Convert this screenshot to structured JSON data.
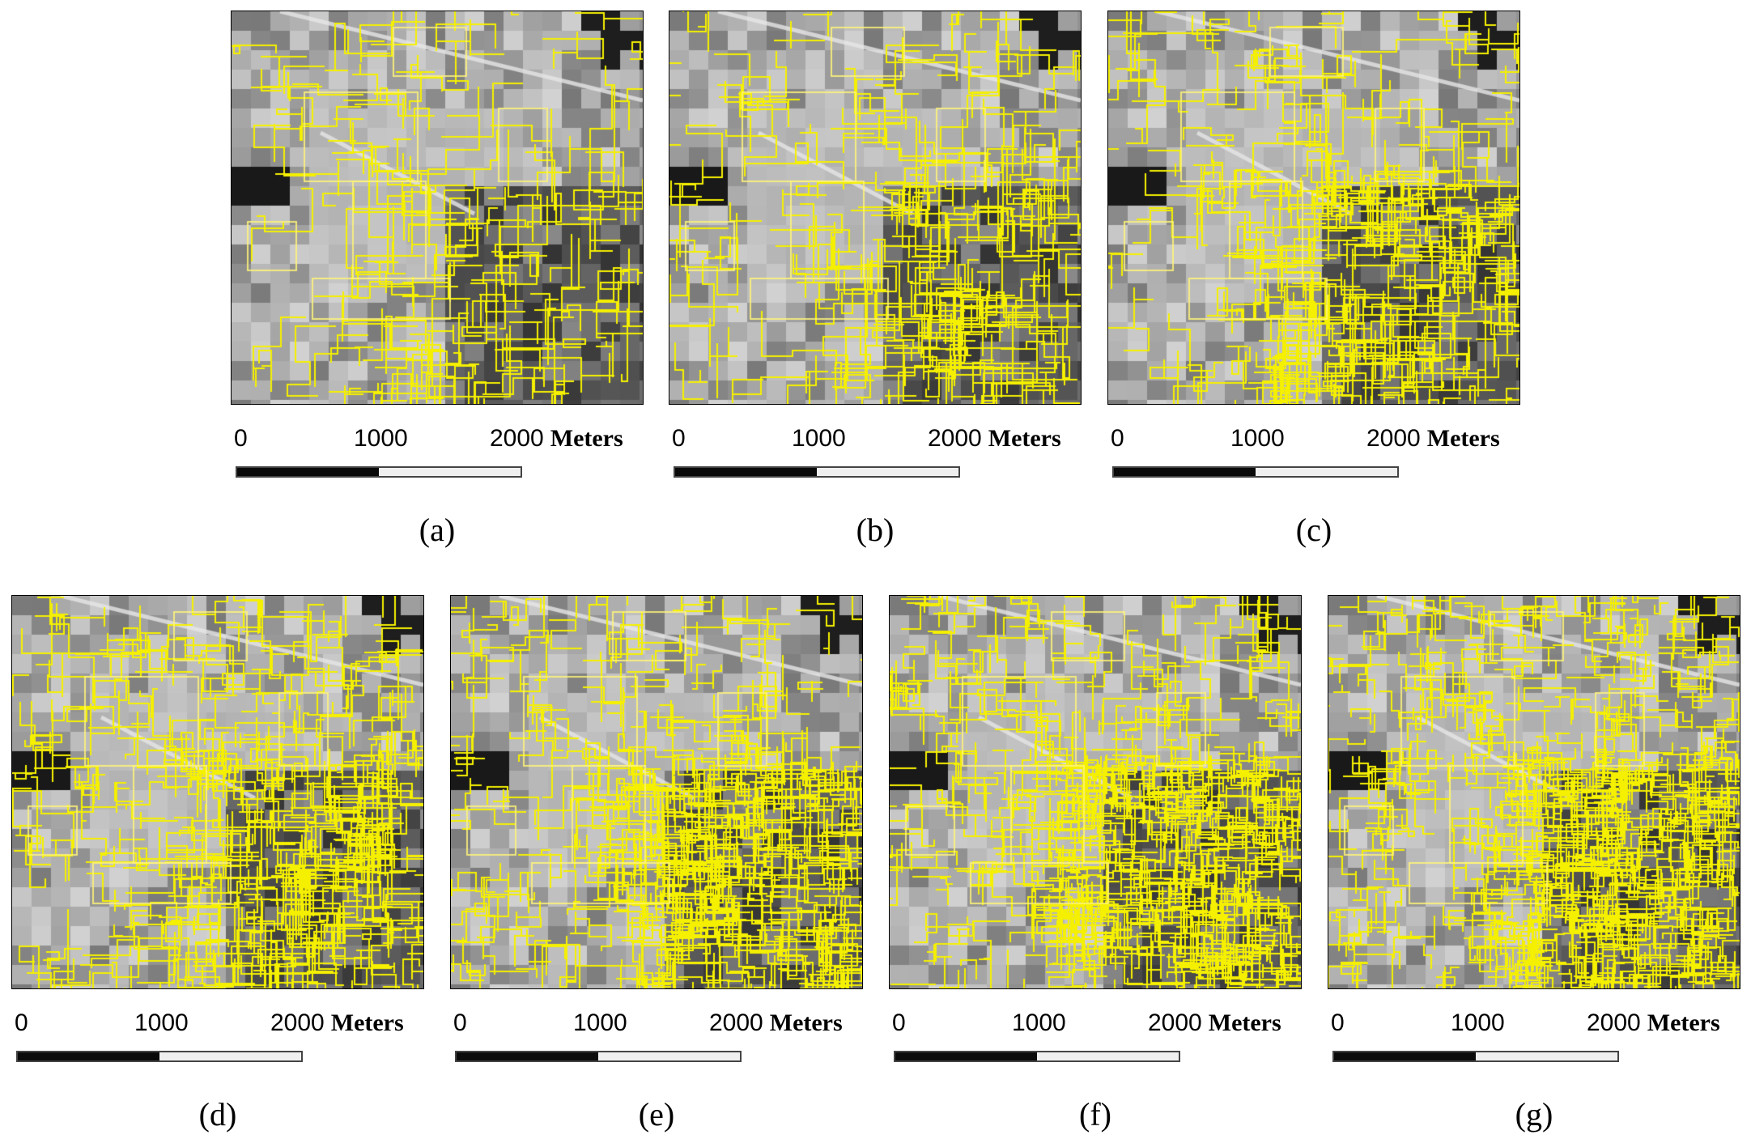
{
  "scale_bar": {
    "label_0": "0",
    "label_1000": "1000",
    "label_2000": "2000",
    "unit": "Meters"
  },
  "colors": {
    "boundary": "#f5f000",
    "scale_dark": "#0a0a0a",
    "scale_light": "#efefef"
  },
  "panels": [
    {
      "caption": "(a)",
      "segmentation_density": 1
    },
    {
      "caption": "(b)",
      "segmentation_density": 2
    },
    {
      "caption": "(c)",
      "segmentation_density": 3
    },
    {
      "caption": "(d)",
      "segmentation_density": 4
    },
    {
      "caption": "(e)",
      "segmentation_density": 5
    },
    {
      "caption": "(f)",
      "segmentation_density": 6
    },
    {
      "caption": "(g)",
      "segmentation_density": 7
    }
  ]
}
